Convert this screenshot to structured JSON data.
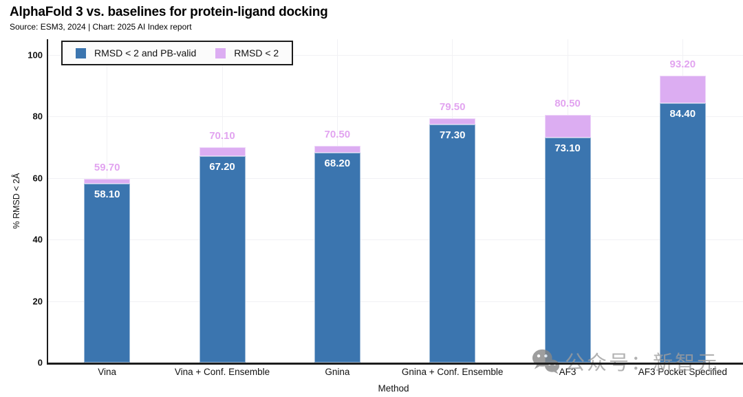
{
  "header": {
    "title": "AlphaFold 3 vs. baselines for protein-ligand docking",
    "subtitle": "Source: ESM3, 2024 | Chart: 2025 AI Index report"
  },
  "chart_data": {
    "type": "bar",
    "stacked": true,
    "title": "AlphaFold 3 vs. baselines for protein-ligand docking",
    "xlabel": "Method",
    "ylabel": "% RMSD < 2Å",
    "ylim": [
      0,
      100
    ],
    "yticks": [
      0,
      20,
      40,
      60,
      80,
      100
    ],
    "grid": true,
    "legend_position": "top-left",
    "categories": [
      "Vina",
      "Vina + Conf. Ensemble",
      "Gnina",
      "Gnina + Conf. Ensemble",
      "AF3",
      "AF3 Pocket Specified"
    ],
    "series": [
      {
        "name": "RMSD < 2 and PB-valid",
        "color": "#3B75AF",
        "label_color": "#FFFFFF",
        "values": [
          58.1,
          67.2,
          68.2,
          77.3,
          73.1,
          84.4
        ],
        "labels": [
          "58.10",
          "67.20",
          "68.20",
          "77.30",
          "73.10",
          "84.40"
        ]
      },
      {
        "name": "RMSD < 2",
        "color": "#DCADF2",
        "label_color": "#E2A4F0",
        "note": "values are cumulative totals; purple segment height = total minus blue value",
        "values": [
          59.7,
          70.1,
          70.5,
          79.5,
          80.5,
          93.2
        ],
        "labels": [
          "59.70",
          "70.10",
          "70.50",
          "79.50",
          "80.50",
          "93.20"
        ]
      }
    ]
  },
  "watermark": {
    "icon": "wechat-icon",
    "text": "公众号：新智元"
  }
}
